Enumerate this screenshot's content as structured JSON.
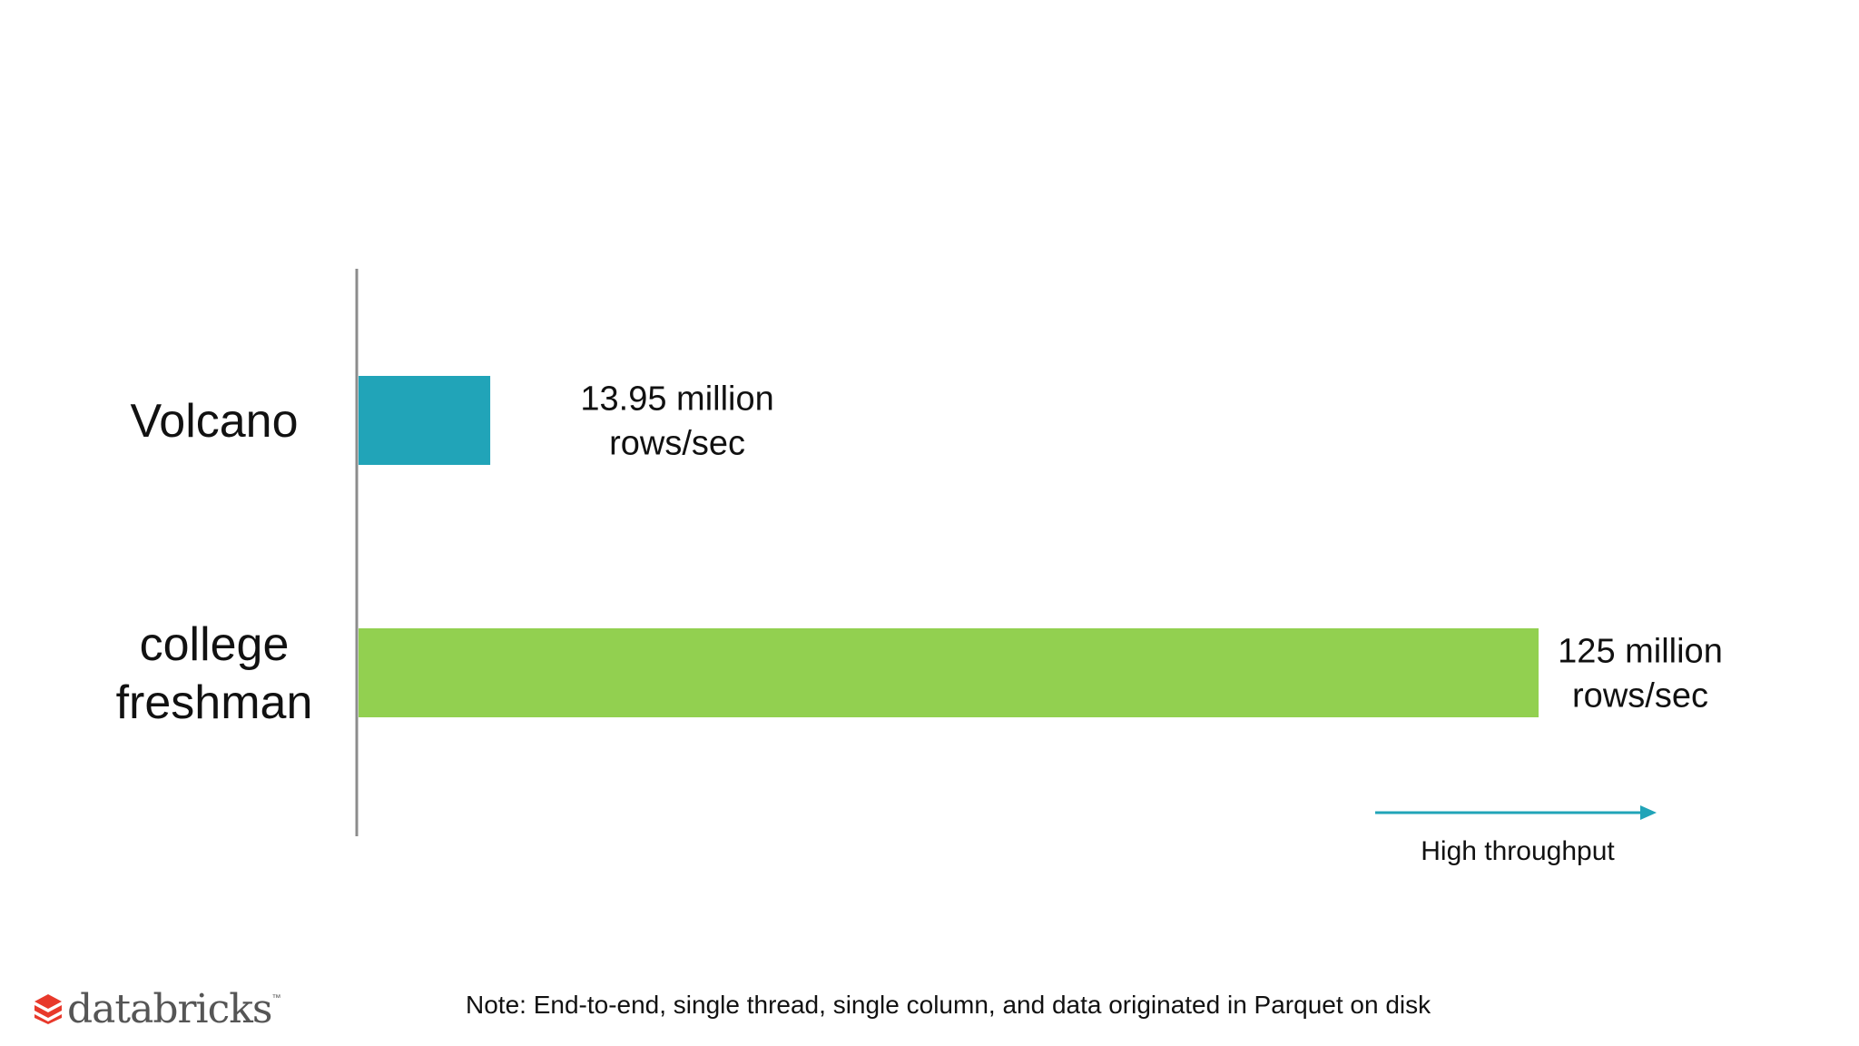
{
  "chart_data": {
    "type": "bar",
    "orientation": "horizontal",
    "categories": [
      "Volcano",
      "college freshman"
    ],
    "category_lines": [
      [
        "Volcano"
      ],
      [
        "college",
        "freshman"
      ]
    ],
    "values": [
      13.95,
      125
    ],
    "unit": "million rows/sec",
    "data_labels": [
      [
        "13.95 million",
        "rows/sec"
      ],
      [
        "125 million",
        "rows/sec"
      ]
    ],
    "colors": [
      "#21A4B8",
      "#92D050"
    ],
    "xlim": [
      0,
      125
    ],
    "grid": false,
    "annotation": {
      "text": "High throughput",
      "arrow_color": "#21A4B8"
    }
  },
  "footnote": "Note: End-to-end, single thread, single column, and data originated in Parquet on disk",
  "logo": {
    "text": "databricks",
    "mark_color": "#E8392B",
    "icon": "databricks-logo-icon"
  }
}
